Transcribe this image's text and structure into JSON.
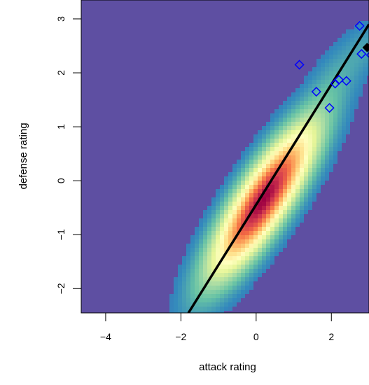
{
  "chart_data": {
    "type": "heatmap",
    "title": "",
    "xlabel": "attack rating",
    "ylabel": "defense rating",
    "xlim": [
      -4.65,
      3.0
    ],
    "ylim": [
      -2.45,
      3.35
    ],
    "xticks": [
      -4,
      -2,
      0,
      2
    ],
    "yticks": [
      -2,
      -1,
      0,
      1,
      2,
      3
    ],
    "tick_labels": {
      "x": [
        "−4",
        "−2",
        "0",
        "2"
      ],
      "y": [
        "−2",
        "−1",
        "0",
        "1",
        "2",
        "3"
      ]
    },
    "grid": false,
    "density": {
      "description_colormap": "spectral",
      "components": [
        {
          "mean": [
            0.2,
            -0.35
          ],
          "sd": [
            0.85,
            0.85
          ],
          "corr": 0.84,
          "weight": 1.0
        },
        {
          "mean": [
            2.2,
            2.0
          ],
          "sd": [
            0.5,
            0.45
          ],
          "corr": 0.6,
          "weight": 0.045
        },
        {
          "mean": [
            2.9,
            2.5
          ],
          "sd": [
            0.3,
            0.3
          ],
          "corr": 0.3,
          "weight": 0.03
        }
      ]
    },
    "regression_line": {
      "x": [
        -1.8,
        3.0
      ],
      "y": [
        -2.45,
        2.9
      ],
      "color": "#000000"
    },
    "series": [
      {
        "marker": "open-diamond",
        "color": "#0000ff",
        "points": [
          {
            "x": 1.15,
            "y": 2.15
          },
          {
            "x": 1.6,
            "y": 1.65
          },
          {
            "x": 1.95,
            "y": 1.35
          },
          {
            "x": 2.1,
            "y": 1.8
          },
          {
            "x": 2.2,
            "y": 1.87
          },
          {
            "x": 2.4,
            "y": 1.85
          },
          {
            "x": 2.75,
            "y": 2.87
          },
          {
            "x": 2.8,
            "y": 2.35
          },
          {
            "x": 3.05,
            "y": 2.33
          }
        ]
      },
      {
        "marker": "filled-diamond",
        "color": "#000000",
        "points": [
          {
            "x": 2.95,
            "y": 2.47
          }
        ]
      }
    ]
  }
}
